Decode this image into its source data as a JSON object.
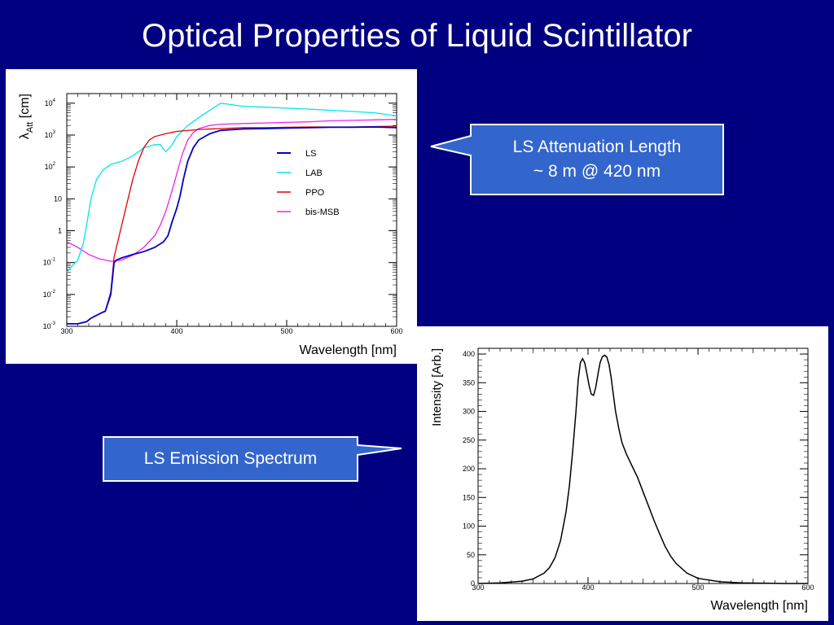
{
  "slide": {
    "title": "Optical Properties of Liquid Scintillator"
  },
  "callouts": {
    "attenuation": {
      "line1": "LS Attenuation Length",
      "line2": "~ 8 m @ 420 nm"
    },
    "emission": {
      "text": "LS Emission Spectrum"
    }
  },
  "colors": {
    "background": "#000080",
    "callout_fill": "#3366cc",
    "LS": "#0000cc",
    "LAB": "#00e5ee",
    "PPO": "#e00000",
    "bis-MSB": "#ee22ee"
  },
  "chart_data": [
    {
      "type": "line",
      "xlabel": "Wavelength [nm]",
      "ylabel": "λAtt [cm]",
      "ylabel_main": "λ",
      "ylabel_sub": "Att",
      "ylabel_unit": " [cm]",
      "y_scale": "log",
      "xlim": [
        300,
        600
      ],
      "ylim": [
        0.001,
        20000
      ],
      "x_ticks": [
        300,
        400,
        500,
        600
      ],
      "x_tick_labels": [
        "300",
        "400",
        "500",
        "600"
      ],
      "y_ticks": [
        0.001,
        0.01,
        0.1,
        1,
        10,
        100,
        1000,
        10000
      ],
      "y_tick_labels": [
        {
          "base": "10",
          "exp": "-3"
        },
        {
          "base": "10",
          "exp": "-2"
        },
        {
          "base": "10",
          "exp": "-1"
        },
        {
          "base": "1",
          "exp": ""
        },
        {
          "base": "10",
          "exp": ""
        },
        {
          "base": "10",
          "exp": "2"
        },
        {
          "base": "10",
          "exp": "3"
        },
        {
          "base": "10",
          "exp": "4"
        }
      ],
      "legend_position": "right-middle",
      "series": [
        {
          "name": "LS",
          "x": [
            300,
            310,
            318,
            322,
            330,
            335,
            340,
            343,
            345,
            350,
            360,
            370,
            380,
            388,
            392,
            396,
            400,
            403,
            406,
            410,
            415,
            420,
            430,
            440,
            460,
            480,
            500,
            520,
            540,
            560,
            580,
            600
          ],
          "y": [
            0.0012,
            0.0012,
            0.0014,
            0.0018,
            0.0025,
            0.003,
            0.01,
            0.1,
            0.12,
            0.14,
            0.18,
            0.22,
            0.3,
            0.45,
            0.7,
            2,
            5,
            12,
            40,
            150,
            400,
            700,
            1100,
            1400,
            1550,
            1600,
            1650,
            1700,
            1750,
            1750,
            1800,
            1700
          ]
        },
        {
          "name": "LAB",
          "x": [
            300,
            305,
            310,
            315,
            318,
            322,
            327,
            333,
            340,
            350,
            360,
            370,
            380,
            385,
            390,
            395,
            400,
            410,
            420,
            430,
            440,
            450,
            460,
            480,
            500,
            520,
            540,
            560,
            580,
            600
          ],
          "y": [
            0.05,
            0.08,
            0.12,
            0.4,
            1.5,
            10,
            40,
            80,
            120,
            150,
            220,
            400,
            500,
            500,
            300,
            450,
            900,
            2000,
            3500,
            6000,
            10000,
            9000,
            8000,
            7500,
            7000,
            6500,
            6000,
            5500,
            5000,
            4000
          ]
        },
        {
          "name": "PPO",
          "x": [
            300,
            310,
            318,
            322,
            330,
            335,
            340,
            343,
            346,
            350,
            355,
            360,
            365,
            370,
            375,
            380,
            390,
            400,
            420,
            440,
            460,
            480,
            500,
            520,
            540,
            560,
            580,
            600
          ],
          "y": [
            0.0012,
            0.0012,
            0.0014,
            0.0018,
            0.0025,
            0.003,
            0.012,
            0.15,
            0.4,
            1.5,
            8,
            40,
            150,
            400,
            700,
            900,
            1100,
            1300,
            1500,
            1600,
            1700,
            1700,
            1750,
            1800,
            1800,
            1800,
            1850,
            1900
          ]
        },
        {
          "name": "bis-MSB",
          "x": [
            300,
            310,
            320,
            330,
            340,
            350,
            360,
            370,
            380,
            385,
            390,
            395,
            400,
            405,
            410,
            415,
            420,
            430,
            440,
            460,
            480,
            500,
            520,
            540,
            560,
            580,
            600
          ],
          "y": [
            0.45,
            0.3,
            0.18,
            0.13,
            0.11,
            0.12,
            0.17,
            0.3,
            0.7,
            1.5,
            4,
            15,
            60,
            250,
            700,
            1200,
            1600,
            2000,
            2200,
            2300,
            2400,
            2500,
            2600,
            2800,
            2900,
            3000,
            3100
          ]
        }
      ]
    },
    {
      "type": "line",
      "xlabel": "Wavelength [nm]",
      "ylabel": "Intensity [Arb.]",
      "xlim": [
        300,
        600
      ],
      "ylim": [
        0,
        410
      ],
      "x_ticks": [
        300,
        400,
        500,
        600
      ],
      "x_tick_labels": [
        "300",
        "400",
        "500",
        "600"
      ],
      "y_ticks": [
        0,
        50,
        100,
        150,
        200,
        250,
        300,
        350,
        400
      ],
      "y_tick_labels": [
        "0",
        "50",
        "100",
        "150",
        "200",
        "250",
        "300",
        "350",
        "400"
      ],
      "series": [
        {
          "x": [
            300,
            320,
            340,
            350,
            360,
            365,
            370,
            375,
            380,
            383,
            386,
            389,
            391,
            393,
            395,
            397,
            399,
            401,
            403,
            405,
            407,
            409,
            411,
            413,
            415,
            417,
            419,
            421,
            423,
            425,
            428,
            431,
            435,
            440,
            445,
            450,
            455,
            460,
            465,
            470,
            475,
            480,
            490,
            500,
            520,
            540,
            560,
            580,
            600
          ],
          "y": [
            0,
            1,
            4,
            8,
            18,
            28,
            45,
            75,
            125,
            170,
            230,
            300,
            355,
            385,
            392,
            385,
            365,
            345,
            330,
            328,
            342,
            365,
            385,
            395,
            398,
            395,
            382,
            360,
            330,
            300,
            270,
            245,
            225,
            205,
            185,
            160,
            135,
            110,
            87,
            65,
            48,
            35,
            18,
            9,
            3,
            1,
            0.5,
            0,
            0
          ]
        }
      ]
    }
  ]
}
